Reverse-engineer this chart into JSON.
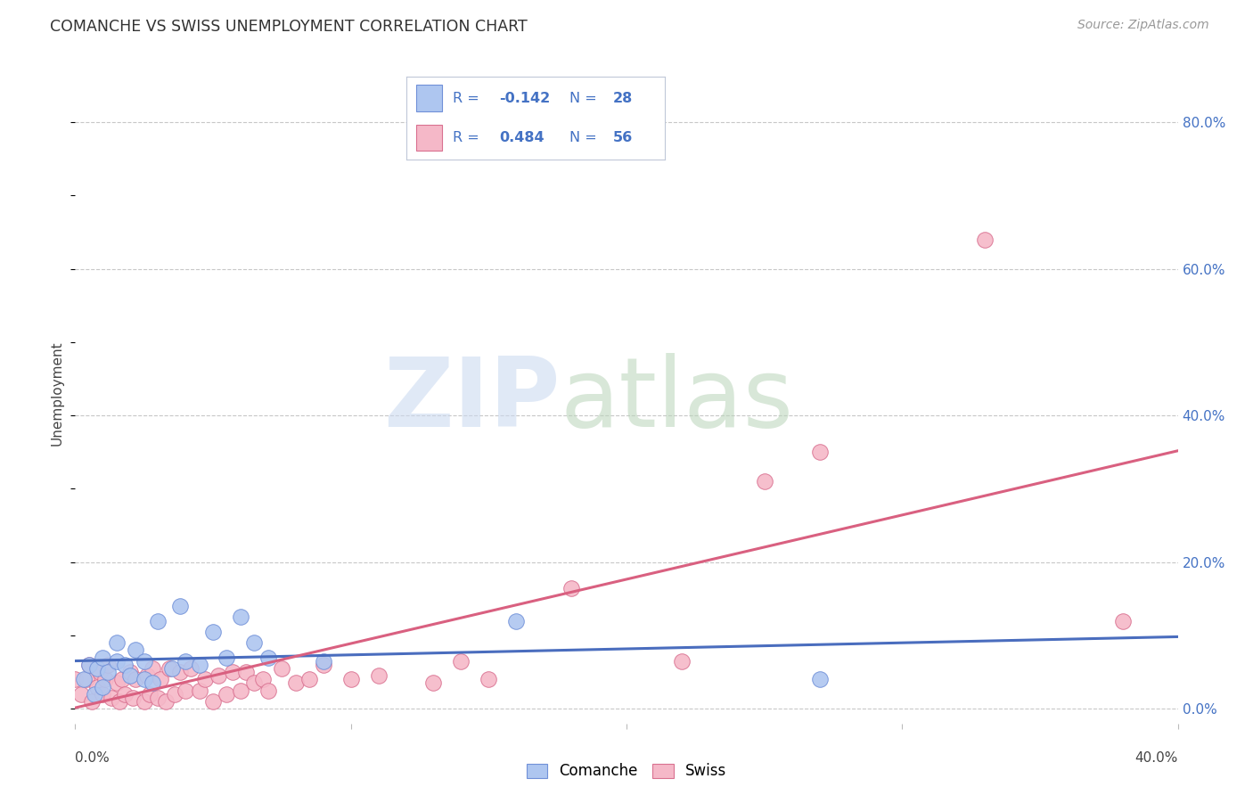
{
  "title": "COMANCHE VS SWISS UNEMPLOYMENT CORRELATION CHART",
  "source": "Source: ZipAtlas.com",
  "ylabel": "Unemployment",
  "xlim": [
    0.0,
    0.4
  ],
  "ylim": [
    -0.02,
    0.88
  ],
  "yticks": [
    0.0,
    0.2,
    0.4,
    0.6,
    0.8
  ],
  "ytick_labels": [
    "0.0%",
    "20.0%",
    "40.0%",
    "60.0%",
    "80.0%"
  ],
  "comanche_color": "#aec6f0",
  "comanche_edge": "#7090d8",
  "swiss_color": "#f5b8c8",
  "swiss_edge": "#d97090",
  "trend_comanche_color": "#4a6dbe",
  "trend_swiss_color": "#d96080",
  "legend_text_color": "#4472c4",
  "R_comanche": -0.142,
  "N_comanche": 28,
  "R_swiss": 0.484,
  "N_swiss": 56,
  "comanche_x": [
    0.003,
    0.005,
    0.007,
    0.008,
    0.01,
    0.01,
    0.012,
    0.015,
    0.015,
    0.018,
    0.02,
    0.022,
    0.025,
    0.025,
    0.028,
    0.03,
    0.035,
    0.038,
    0.04,
    0.045,
    0.05,
    0.055,
    0.06,
    0.065,
    0.07,
    0.09,
    0.16,
    0.27
  ],
  "comanche_y": [
    0.04,
    0.06,
    0.02,
    0.055,
    0.03,
    0.07,
    0.05,
    0.065,
    0.09,
    0.06,
    0.045,
    0.08,
    0.04,
    0.065,
    0.035,
    0.12,
    0.055,
    0.14,
    0.065,
    0.06,
    0.105,
    0.07,
    0.125,
    0.09,
    0.07,
    0.065,
    0.12,
    0.04
  ],
  "swiss_x": [
    0.0,
    0.002,
    0.004,
    0.005,
    0.006,
    0.008,
    0.009,
    0.01,
    0.011,
    0.012,
    0.013,
    0.015,
    0.016,
    0.017,
    0.018,
    0.02,
    0.021,
    0.022,
    0.025,
    0.026,
    0.027,
    0.028,
    0.03,
    0.031,
    0.033,
    0.034,
    0.036,
    0.038,
    0.04,
    0.042,
    0.045,
    0.047,
    0.05,
    0.052,
    0.055,
    0.057,
    0.06,
    0.062,
    0.065,
    0.068,
    0.07,
    0.075,
    0.08,
    0.085,
    0.09,
    0.1,
    0.11,
    0.13,
    0.14,
    0.15,
    0.18,
    0.22,
    0.25,
    0.27,
    0.33,
    0.38
  ],
  "swiss_y": [
    0.04,
    0.02,
    0.04,
    0.06,
    0.01,
    0.03,
    0.05,
    0.02,
    0.04,
    0.06,
    0.015,
    0.035,
    0.01,
    0.04,
    0.02,
    0.05,
    0.015,
    0.04,
    0.01,
    0.045,
    0.02,
    0.055,
    0.015,
    0.04,
    0.01,
    0.055,
    0.02,
    0.05,
    0.025,
    0.055,
    0.025,
    0.04,
    0.01,
    0.045,
    0.02,
    0.05,
    0.025,
    0.05,
    0.035,
    0.04,
    0.025,
    0.055,
    0.035,
    0.04,
    0.06,
    0.04,
    0.045,
    0.035,
    0.065,
    0.04,
    0.165,
    0.065,
    0.31,
    0.35,
    0.64,
    0.12
  ],
  "background_color": "#ffffff",
  "grid_color": "#c8c8c8"
}
